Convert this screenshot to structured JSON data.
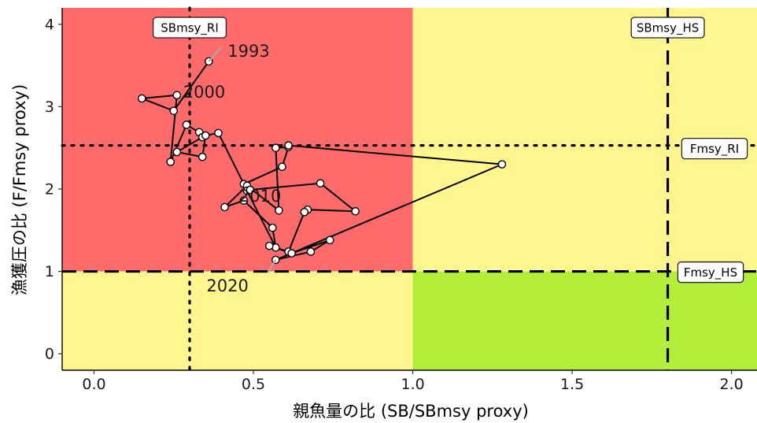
{
  "chart_data": {
    "type": "scatter",
    "xlabel": "親魚量の比 (SB/SBmsy proxy)",
    "ylabel": "漁獲圧の比 (F/Fmsy proxy)",
    "xlim": [
      -0.1,
      2.08
    ],
    "ylim": [
      -0.2,
      4.2
    ],
    "x_ticks": [
      0.0,
      0.5,
      1.0,
      1.5,
      2.0
    ],
    "x_tick_labels": [
      "0.0",
      "0.5",
      "1.0",
      "1.5",
      "2.0"
    ],
    "y_ticks": [
      0,
      1,
      2,
      3,
      4
    ],
    "y_tick_labels": [
      "0",
      "1",
      "2",
      "3",
      "4"
    ],
    "grid": false,
    "zones": [
      {
        "name": "overfished-overfishing",
        "x": [
          -0.1,
          1.0
        ],
        "y": [
          1.0,
          4.2
        ],
        "color": "#ff6a6a"
      },
      {
        "name": "overfishing-healthy-stock",
        "x": [
          1.0,
          2.08
        ],
        "y": [
          1.0,
          4.2
        ],
        "color": "#fff68f"
      },
      {
        "name": "overfished-low-f",
        "x": [
          -0.1,
          1.0
        ],
        "y": [
          -0.2,
          1.0
        ],
        "color": "#fff68f"
      },
      {
        "name": "healthy",
        "x": [
          1.0,
          2.08
        ],
        "y": [
          -0.2,
          1.0
        ],
        "color": "#b3ee3a"
      }
    ],
    "reference_lines": [
      {
        "label": "SBmsy_RI",
        "orientation": "vertical",
        "value": 0.3,
        "style": "dotted"
      },
      {
        "label": "SBmsy_HS",
        "orientation": "vertical",
        "value": 1.8,
        "style": "dashed"
      },
      {
        "label": "Fmsy_RI",
        "orientation": "horizontal",
        "value": 2.53,
        "style": "dotted"
      },
      {
        "label": "Fmsy_HS",
        "orientation": "horizontal",
        "value": 1.0,
        "style": "dashed"
      }
    ],
    "series": [
      {
        "x": [
          0.36,
          0.25,
          0.15,
          0.26,
          0.24,
          0.29,
          0.33,
          0.34,
          0.26,
          0.34,
          0.35,
          0.39,
          0.47,
          0.59,
          0.61,
          0.57,
          0.58,
          0.48,
          0.41,
          0.47,
          0.56,
          0.57,
          0.48,
          0.49,
          0.71,
          0.82,
          0.67,
          0.66,
          0.61,
          0.55,
          0.62,
          0.74,
          0.68,
          0.57,
          1.28,
          0.61
        ],
        "y": [
          3.55,
          2.95,
          3.1,
          3.14,
          2.33,
          2.78,
          2.69,
          2.63,
          2.45,
          2.39,
          2.65,
          2.68,
          2.06,
          2.27,
          2.51,
          2.5,
          1.74,
          2.04,
          1.78,
          1.86,
          1.53,
          1.29,
          1.98,
          1.99,
          2.07,
          1.73,
          1.75,
          1.72,
          1.24,
          1.31,
          1.22,
          1.38,
          1.24,
          1.14,
          2.3,
          2.53
        ]
      }
    ],
    "annotations": [
      {
        "text": "1993",
        "x": 0.36,
        "y": 3.55,
        "leader": true
      },
      {
        "text": "2000",
        "x": 0.26,
        "y": 3.14,
        "leader": false
      },
      {
        "text": "2010",
        "x": 0.48,
        "y": 1.98,
        "leader": false
      },
      {
        "text": "2020",
        "x": 0.57,
        "y": 1.14,
        "leader": true
      }
    ],
    "colors": {
      "trajectory": "#000000",
      "point_fill": "#ffffff",
      "point_stroke": "#000000",
      "leader": "#aaaaaa",
      "reference": "#000000"
    }
  }
}
